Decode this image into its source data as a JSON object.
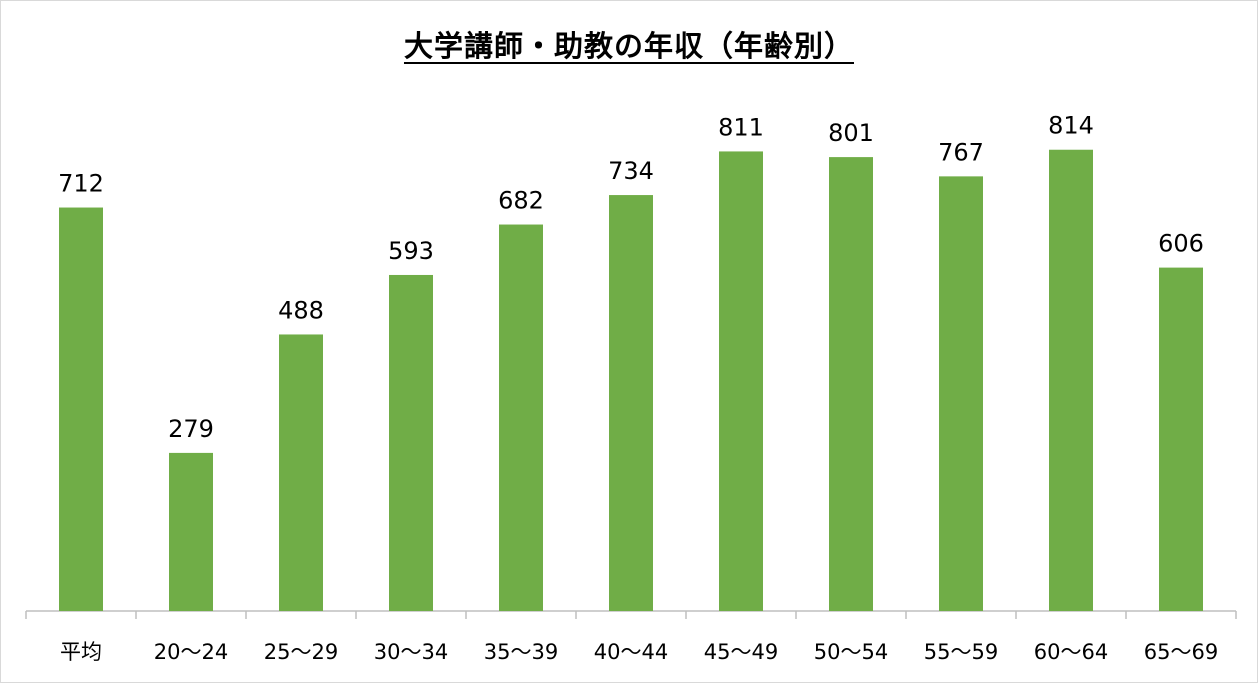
{
  "chart_data": {
    "type": "bar",
    "title": "大学講師・助教の年収（年齢別）",
    "categories": [
      "平均",
      "20〜24",
      "25〜29",
      "30〜34",
      "35〜39",
      "40〜44",
      "45〜49",
      "50〜54",
      "55〜59",
      "60〜64",
      "65〜69"
    ],
    "values": [
      712,
      279,
      488,
      593,
      682,
      734,
      811,
      801,
      767,
      814,
      606
    ],
    "ylim": [
      0,
      900
    ],
    "grid": false,
    "legend": "none",
    "colors": {
      "bar": "#70ad47",
      "axis": "#bfbfbf"
    }
  }
}
